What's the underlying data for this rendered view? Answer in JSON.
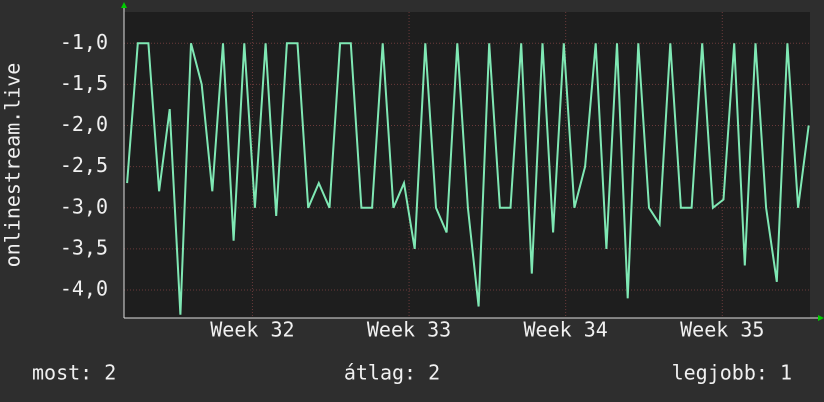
{
  "chart_data": {
    "type": "line",
    "y_label": "onlinestream.live",
    "x": [
      31.2,
      31.268,
      31.336,
      31.404,
      31.472,
      31.54,
      31.608,
      31.676,
      31.744,
      31.812,
      31.88,
      31.948,
      32.016,
      32.084,
      32.152,
      32.22,
      32.288,
      32.356,
      32.424,
      32.492,
      32.56,
      32.628,
      32.696,
      32.764,
      32.832,
      32.9,
      32.968,
      33.036,
      33.104,
      33.172,
      33.24,
      33.308,
      33.376,
      33.444,
      33.512,
      33.58,
      33.648,
      33.716,
      33.784,
      33.852,
      33.92,
      33.988,
      34.056,
      34.124,
      34.192,
      34.26,
      34.328,
      34.396,
      34.464,
      34.532,
      34.6,
      34.668,
      34.736,
      34.804,
      34.872,
      34.94,
      35.008,
      35.076,
      35.144,
      35.212,
      35.28,
      35.348,
      35.416,
      35.484,
      35.552
    ],
    "values": [
      -2.7,
      -1,
      -1,
      -2.8,
      -1.8,
      -4.3,
      -1,
      -1.5,
      -2.8,
      -1,
      -3.4,
      -1,
      -3,
      -1,
      -3.1,
      -1,
      -1,
      -3,
      -2.7,
      -3,
      -1,
      -1,
      -3,
      -3,
      -1,
      -3,
      -2.7,
      -3.5,
      -1,
      -3,
      -3.3,
      -1,
      -3,
      -4.2,
      -1,
      -3,
      -3,
      -1,
      -3.8,
      -1,
      -3.3,
      -1,
      -3,
      -2.5,
      -1,
      -3.5,
      -1,
      -4.1,
      -1,
      -3,
      -3.2,
      -1,
      -3,
      -3,
      -1,
      -3,
      -2.9,
      -1,
      -3.7,
      -1,
      -3,
      -3.9,
      -1,
      -3,
      -2
    ],
    "color": "#7fe8b4",
    "xlim": [
      31.18,
      35.56
    ],
    "xticks": [
      {
        "value": 32,
        "label": "Week 32"
      },
      {
        "value": 33,
        "label": "Week 33"
      },
      {
        "value": 34,
        "label": "Week 34"
      },
      {
        "value": 35,
        "label": "Week 35"
      }
    ],
    "ylim": [
      -4.34,
      -0.62
    ],
    "yticks": [
      {
        "value": -4,
        "label": "-4,0"
      },
      {
        "value": -3.5,
        "label": "-3,5"
      },
      {
        "value": -3,
        "label": "-3,0"
      },
      {
        "value": -2.5,
        "label": "-2,5"
      },
      {
        "value": -2,
        "label": "-2,0"
      },
      {
        "value": -1.5,
        "label": "-1,5"
      },
      {
        "value": -1,
        "label": "-1,0"
      }
    ],
    "grid": true,
    "footer": [
      "most: 2",
      "átlag: 2",
      "legjobb: 1"
    ]
  }
}
